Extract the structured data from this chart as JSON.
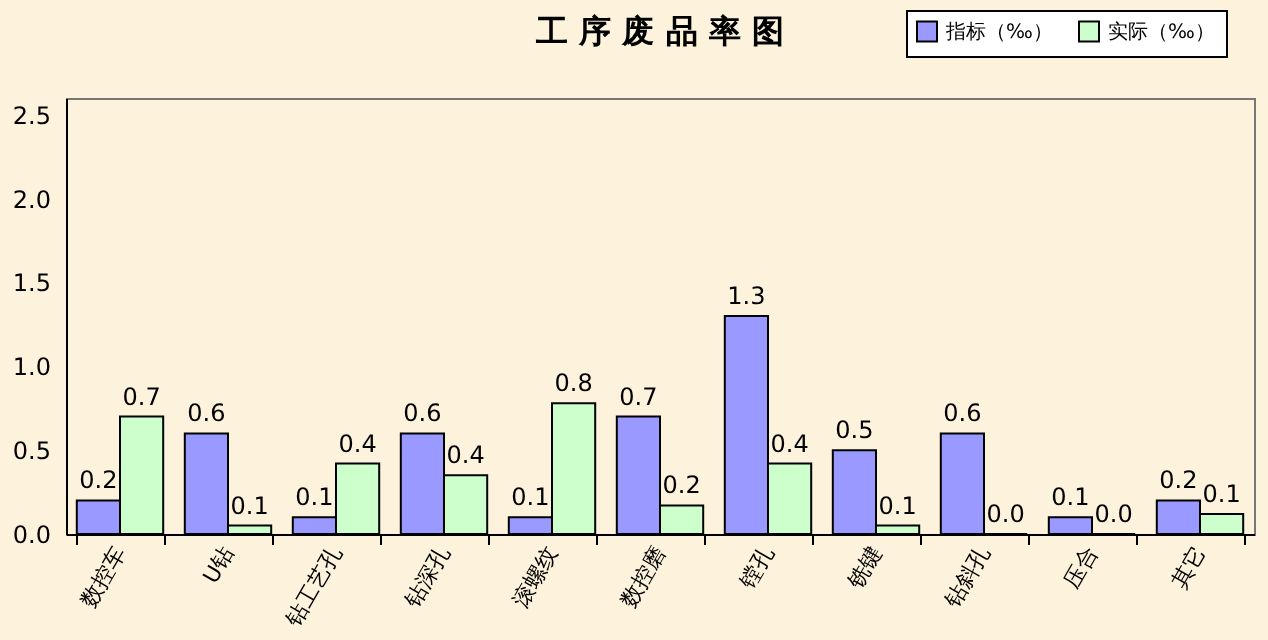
{
  "chart_data": {
    "type": "bar",
    "title": "工 序 废 品 率 图",
    "categories": [
      "数控车",
      "U钻",
      "钻工艺孔",
      "钻深孔",
      "滚螺纹",
      "数控磨",
      "镗孔",
      "铣键",
      "钻斜孔",
      "压合",
      "其它"
    ],
    "series": [
      {
        "name": "指标（‰）",
        "color": "#9999ff",
        "values": [
          0.2,
          0.6,
          0.1,
          0.6,
          0.1,
          0.7,
          1.3,
          0.5,
          0.6,
          0.1,
          0.2
        ],
        "value_labels": [
          "0.2",
          "0.6",
          "0.1",
          "0.6",
          "0.1",
          "0.7",
          "1.3",
          "0.5",
          "0.6",
          "0.1",
          "0.2"
        ]
      },
      {
        "name": "实际（‰）",
        "color": "#ccffcc",
        "values": [
          0.7,
          0.05,
          0.42,
          0.35,
          0.78,
          0.17,
          0.42,
          0.05,
          0.0,
          0.0,
          0.12
        ],
        "value_labels": [
          "0.7",
          "0.1",
          "0.4",
          "0.4",
          "0.8",
          "0.2",
          "0.4",
          "0.1",
          "0.0",
          "0.0",
          "0.1"
        ]
      }
    ],
    "ylim": [
      0,
      2.6
    ],
    "yticks": [
      {
        "value": 0,
        "label": "0.0"
      },
      {
        "value": 0.5,
        "label": "0.5"
      },
      {
        "value": 1,
        "label": "1.0"
      },
      {
        "value": 1.5,
        "label": "1.5"
      },
      {
        "value": 2,
        "label": "2.0"
      },
      {
        "value": 2.5,
        "label": "2.5"
      }
    ],
    "grid": false,
    "legend": "top right"
  }
}
